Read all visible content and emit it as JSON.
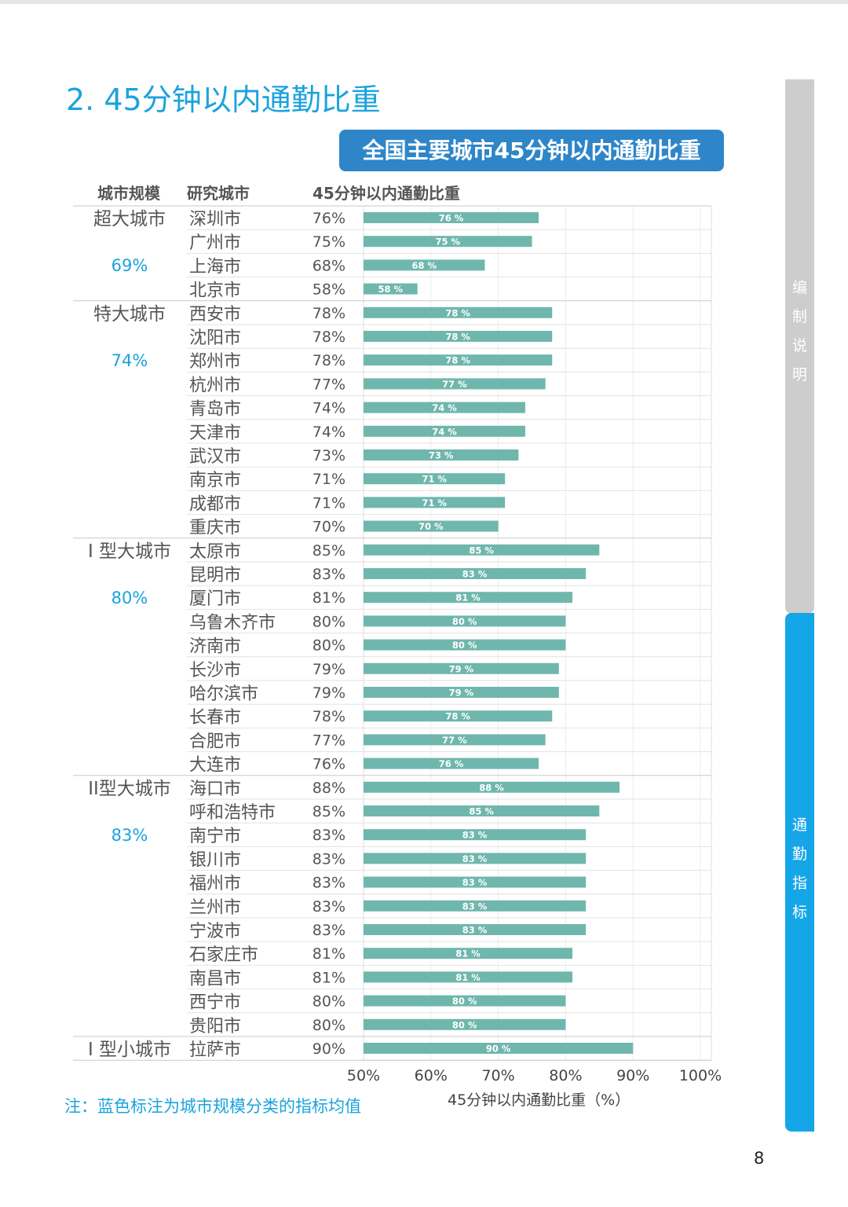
{
  "section_title": "2. 45分钟以内通勤比重",
  "chart_badge": "全国主要城市45分钟以内通勤比重",
  "columns": {
    "scale": "城市规模",
    "city": "研究城市",
    "share": "45分钟以内通勤比重"
  },
  "note": "注：蓝色标注为城市规模分类的指标均值",
  "page_number": "8",
  "side_tabs": {
    "upper": [
      "编",
      "制",
      "说",
      "明"
    ],
    "lower": [
      "通",
      "勤",
      "指",
      "标"
    ]
  },
  "colors": {
    "accent": "#1aa3dd",
    "bar": "#6fb7ad",
    "badge": "#2e86c8",
    "side_gray": "#cdcdcd",
    "side_blue": "#15a6e8",
    "grid": "#dcdcdc"
  },
  "chart_data": {
    "type": "bar",
    "orientation": "horizontal",
    "title": "全国主要城市45分钟以内通勤比重",
    "xlabel": "45分钟以内通勤比重（%）",
    "xlim": [
      50,
      100
    ],
    "xticks": [
      "50%",
      "60%",
      "70%",
      "80%",
      "90%",
      "100%"
    ],
    "grid": true,
    "groups": [
      {
        "name": "超大城市",
        "average": "69%",
        "count": 4
      },
      {
        "name": "特大城市",
        "average": "74%",
        "count": 10
      },
      {
        "name": "I 型大城市",
        "average": "80%",
        "count": 10
      },
      {
        "name": "II型大城市",
        "average": "83%",
        "count": 11
      },
      {
        "name": "I 型小城市",
        "average": "",
        "count": 1
      }
    ],
    "categories": [
      "深圳市",
      "广州市",
      "上海市",
      "北京市",
      "西安市",
      "沈阳市",
      "郑州市",
      "杭州市",
      "青岛市",
      "天津市",
      "武汉市",
      "南京市",
      "成都市",
      "重庆市",
      "太原市",
      "昆明市",
      "厦门市",
      "乌鲁木齐市",
      "济南市",
      "长沙市",
      "哈尔滨市",
      "长春市",
      "合肥市",
      "大连市",
      "海口市",
      "呼和浩特市",
      "南宁市",
      "银川市",
      "福州市",
      "兰州市",
      "宁波市",
      "石家庄市",
      "南昌市",
      "西宁市",
      "贵阳市",
      "拉萨市"
    ],
    "values": [
      76,
      75,
      68,
      58,
      78,
      78,
      78,
      77,
      74,
      74,
      73,
      71,
      71,
      70,
      85,
      83,
      81,
      80,
      80,
      79,
      79,
      78,
      77,
      76,
      88,
      85,
      83,
      83,
      83,
      83,
      83,
      81,
      81,
      80,
      80,
      90
    ],
    "value_labels": [
      "76%",
      "75%",
      "68%",
      "58%",
      "78%",
      "78%",
      "78%",
      "77%",
      "74%",
      "74%",
      "73%",
      "71%",
      "71%",
      "70%",
      "85%",
      "83%",
      "81%",
      "80%",
      "80%",
      "79%",
      "79%",
      "78%",
      "77%",
      "76%",
      "88%",
      "85%",
      "83%",
      "83%",
      "83%",
      "83%",
      "83%",
      "81%",
      "81%",
      "80%",
      "80%",
      "90%"
    ],
    "bar_labels": [
      "76 %",
      "75 %",
      "68 %",
      "58 %",
      "78 %",
      "78 %",
      "78 %",
      "77 %",
      "74 %",
      "74 %",
      "73 %",
      "71 %",
      "71 %",
      "70 %",
      "85 %",
      "83 %",
      "81 %",
      "80 %",
      "80 %",
      "79 %",
      "79 %",
      "78 %",
      "77 %",
      "76 %",
      "88 %",
      "85 %",
      "83 %",
      "83 %",
      "83 %",
      "83 %",
      "83 %",
      "81 %",
      "81 %",
      "80 %",
      "80 %",
      "90 %"
    ]
  }
}
